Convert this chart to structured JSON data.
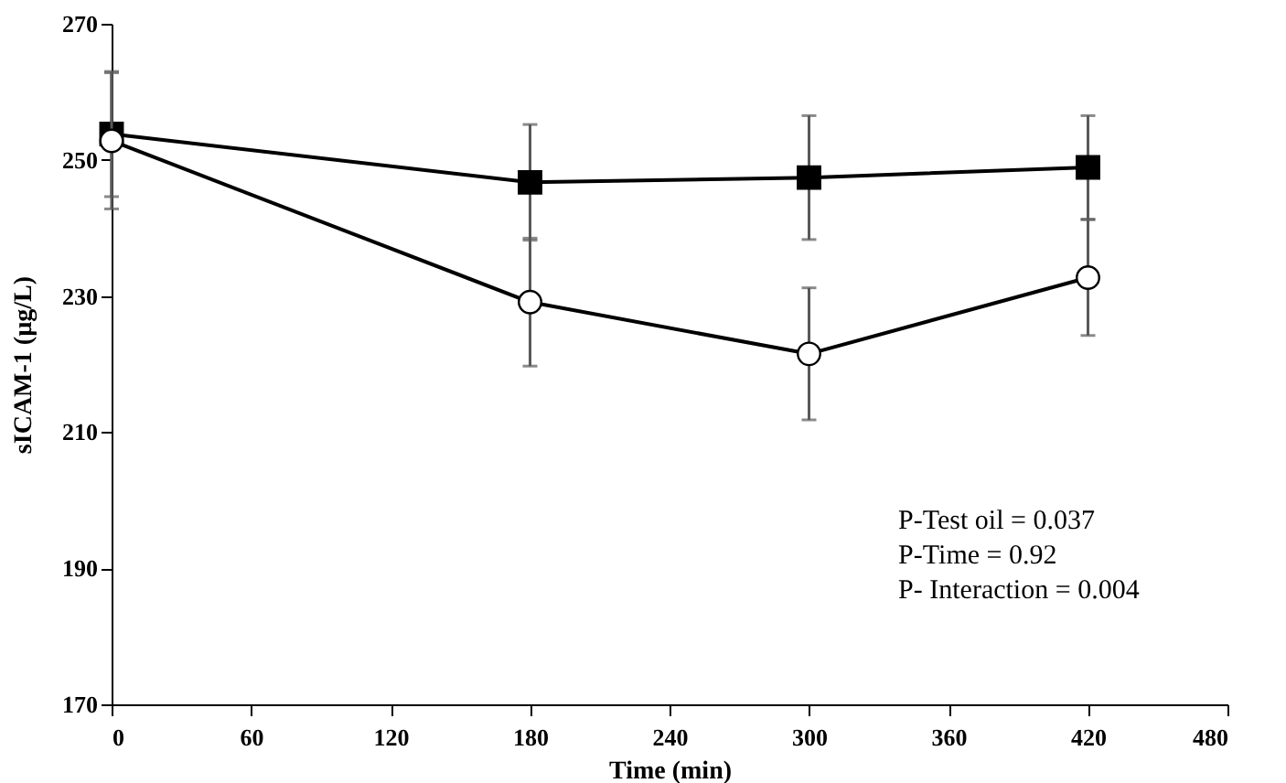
{
  "chart_data": {
    "type": "line",
    "xlabel": "Time (min)",
    "ylabel": "sICAM-1 (µg/L)",
    "x": [
      0,
      180,
      300,
      420
    ],
    "series": [
      {
        "color": "#000000",
        "marker": "square",
        "values": [
          253.8,
          246.7,
          247.4,
          248.9
        ],
        "errors": [
          9.2,
          8.5,
          9.1,
          7.6
        ]
      },
      {
        "color": "#000000",
        "marker": "circle",
        "values": [
          252.8,
          229.1,
          221.5,
          232.7
        ],
        "errors": [
          10,
          9.4,
          9.7,
          8.5
        ]
      }
    ],
    "xlim": [
      0,
      480
    ],
    "xticks": [
      0,
      60,
      120,
      180,
      240,
      300,
      360,
      420,
      480
    ],
    "ylim": [
      170,
      270
    ],
    "yticks": [
      170,
      190,
      210,
      230,
      250,
      270
    ],
    "grid": false,
    "line_style": "solid",
    "annotations": [
      "P-Test oil = 0.037",
      "P-Time = 0.92",
      "P- Interaction = 0.004"
    ]
  }
}
